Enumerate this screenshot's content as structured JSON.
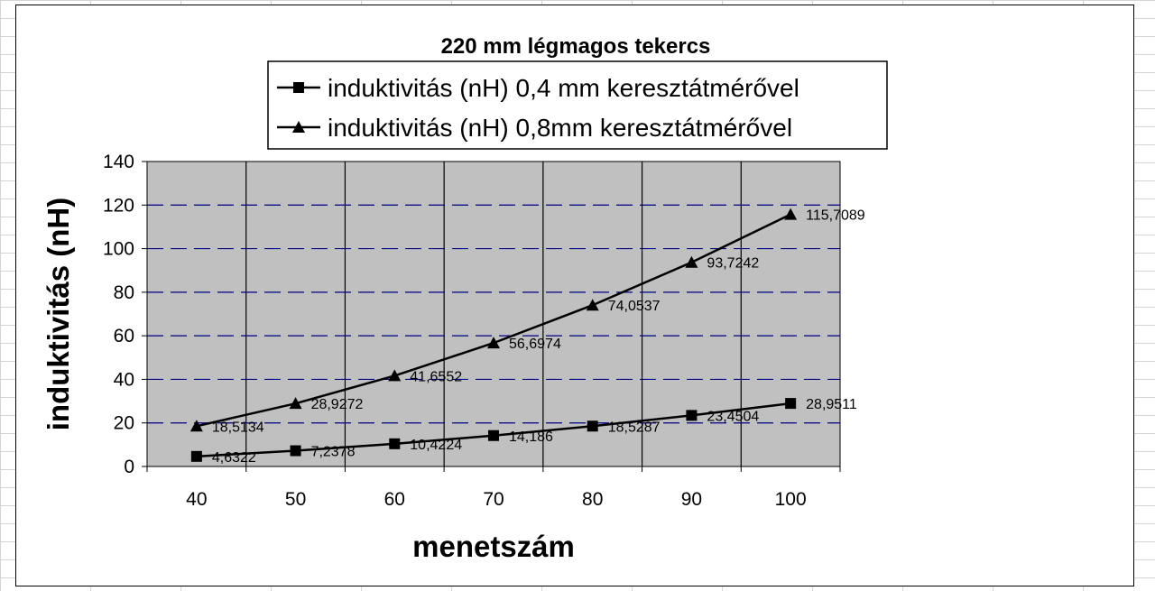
{
  "chart_data": {
    "type": "line",
    "title": "220 mm légmagos tekercs",
    "xlabel": "menetszám",
    "ylabel": "induktivitás (nH)",
    "x": [
      40,
      50,
      60,
      70,
      80,
      90,
      100
    ],
    "ylim": [
      0,
      140
    ],
    "yticks": [
      0,
      20,
      40,
      60,
      80,
      100,
      120,
      140
    ],
    "grid": true,
    "legend_position": "top",
    "plot_background": "#c0c0c0",
    "series": [
      {
        "name": "induktivitás (nH) 0,4 mm keresztátmérővel",
        "marker": "square",
        "color": "#000000",
        "values": [
          4.6322,
          7.2378,
          10.4224,
          14.186,
          18.5287,
          23.4504,
          28.9511
        ],
        "labels": [
          "4,6322",
          "7,2378",
          "10,4224",
          "14,186",
          "18,5287",
          "23,4504",
          "28,9511"
        ]
      },
      {
        "name": "induktivitás (nH) 0,8mm keresztátmérővel",
        "marker": "triangle",
        "color": "#000000",
        "values": [
          18.5134,
          28.9272,
          41.6552,
          56.6974,
          74.0537,
          93.7242,
          115.7089
        ],
        "labels": [
          "18,5134",
          "28,9272",
          "41,6552",
          "56,6974",
          "74,0537",
          "93,7242",
          "115,7089"
        ]
      }
    ]
  }
}
